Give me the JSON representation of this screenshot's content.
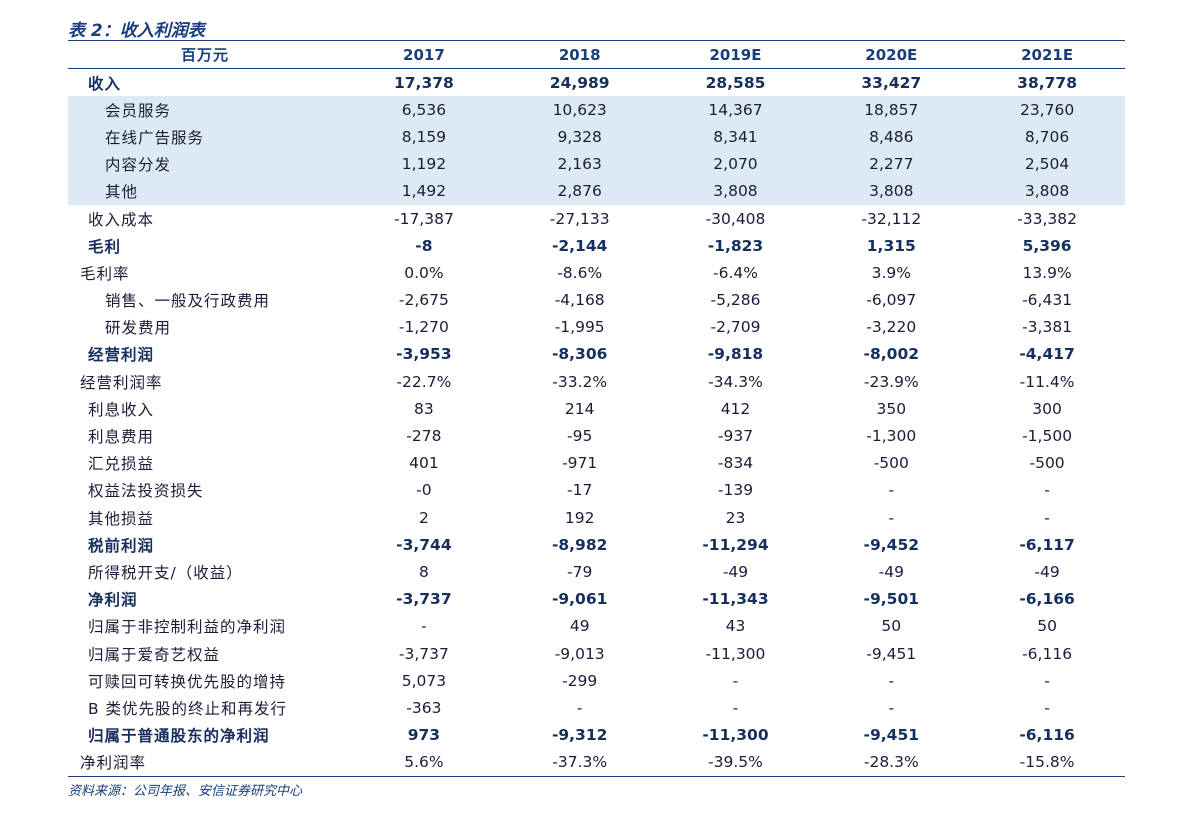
{
  "title": "表 2：收入利润表",
  "table": {
    "header": [
      "百万元",
      "2017",
      "2018",
      "2019E",
      "2020E",
      "2021E"
    ],
    "rows": [
      [
        "收入",
        "17,378",
        "24,989",
        "28,585",
        "33,427",
        "38,778"
      ],
      [
        "会员服务",
        "6,536",
        "10,623",
        "14,367",
        "18,857",
        "23,760"
      ],
      [
        "在线广告服务",
        "8,159",
        "9,328",
        "8,341",
        "8,486",
        "8,706"
      ],
      [
        "内容分发",
        "1,192",
        "2,163",
        "2,070",
        "2,277",
        "2,504"
      ],
      [
        "其他",
        "1,492",
        "2,876",
        "3,808",
        "3,808",
        "3,808"
      ],
      [
        "收入成本",
        "-17,387",
        "-27,133",
        "-30,408",
        "-32,112",
        "-33,382"
      ],
      [
        "毛利",
        "-8",
        "-2,144",
        "-1,823",
        "1,315",
        "5,396"
      ],
      [
        "毛利率",
        "0.0%",
        "-8.6%",
        "-6.4%",
        "3.9%",
        "13.9%"
      ],
      [
        "销售、一般及行政费用",
        "-2,675",
        "-4,168",
        "-5,286",
        "-6,097",
        "-6,431"
      ],
      [
        "研发费用",
        "-1,270",
        "-1,995",
        "-2,709",
        "-3,220",
        "-3,381"
      ],
      [
        "经营利润",
        "-3,953",
        "-8,306",
        "-9,818",
        "-8,002",
        "-4,417"
      ],
      [
        "经营利润率",
        "-22.7%",
        "-33.2%",
        "-34.3%",
        "-23.9%",
        "-11.4%"
      ],
      [
        "利息收入",
        "83",
        "214",
        "412",
        "350",
        "300"
      ],
      [
        "利息费用",
        "-278",
        "-95",
        "-937",
        "-1,300",
        "-1,500"
      ],
      [
        "汇兑损益",
        "401",
        "-971",
        "-834",
        "-500",
        "-500"
      ],
      [
        "权益法投资损失",
        "-0",
        "-17",
        "-139",
        "-",
        "-"
      ],
      [
        "其他损益",
        "2",
        "192",
        "23",
        "-",
        "-"
      ],
      [
        "税前利润",
        "-3,744",
        "-8,982",
        "-11,294",
        "-9,452",
        "-6,117"
      ],
      [
        "所得税开支/（收益）",
        "8",
        "-79",
        "-49",
        "-49",
        "-49"
      ],
      [
        "净利润",
        "-3,737",
        "-9,061",
        "-11,343",
        "-9,501",
        "-6,166"
      ],
      [
        "归属于非控制利益的净利润",
        "-",
        "49",
        "43",
        "50",
        "50"
      ],
      [
        "归属于爱奇艺权益",
        "-3,737",
        "-9,013",
        "-11,300",
        "-9,451",
        "-6,116"
      ],
      [
        "可赎回可转换优先股的增持",
        "5,073",
        "-299",
        "-",
        "-",
        "-"
      ],
      [
        "B 类优先股的终止和再发行",
        "-363",
        "-",
        "-",
        "-",
        "-"
      ],
      [
        "归属于普通股东的净利润",
        "973",
        "-9,312",
        "-11,300",
        "-9,451",
        "-6,116"
      ],
      [
        "净利润率",
        "5.6%",
        "-37.3%",
        "-39.5%",
        "-28.3%",
        "-15.8%"
      ]
    ]
  },
  "source": "资料来源：公司年报、安信证券研究中心"
}
